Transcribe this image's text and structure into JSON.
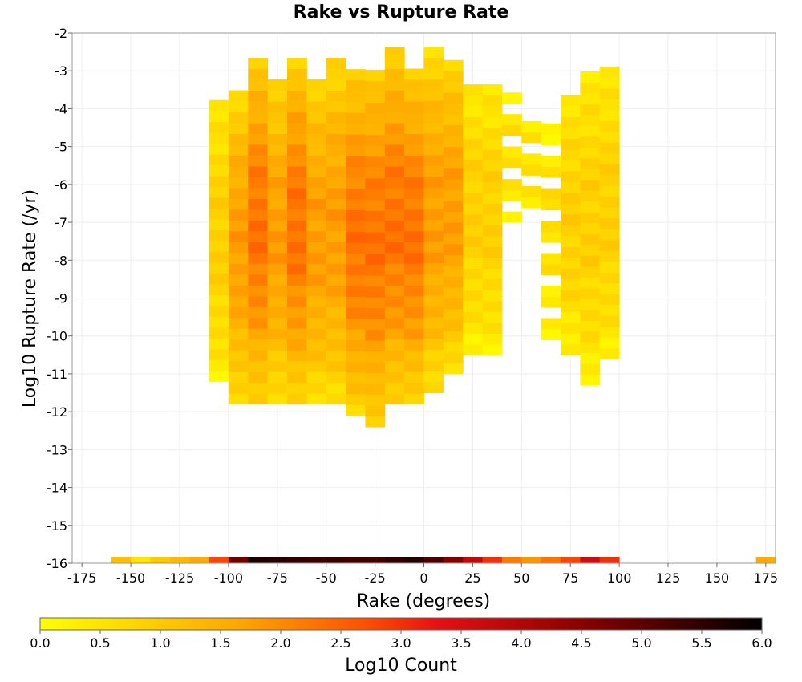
{
  "chart_data": {
    "type": "heatmap",
    "title": "Rake vs Rupture Rate",
    "xlabel": "Rake (degrees)",
    "ylabel": "Log10 Rupture Rate (/yr)",
    "xlim": [
      -180,
      180
    ],
    "ylim": [
      -16,
      -2
    ],
    "x_ticks": [
      -175,
      -150,
      -125,
      -100,
      -75,
      -50,
      -25,
      0,
      25,
      50,
      75,
      100,
      125,
      150,
      175
    ],
    "y_ticks": [
      -2,
      -3,
      -4,
      -5,
      -6,
      -7,
      -8,
      -9,
      -10,
      -11,
      -12,
      -13,
      -14,
      -15,
      -16
    ],
    "grid": true,
    "bin_width_x": 10,
    "bin_height_y": 0.2857,
    "x_bins_start": -110,
    "colorbar": {
      "label": "Log10 Count",
      "min": 0.0,
      "max": 6.0,
      "ticks": [
        "0.0",
        "0.5",
        "1.0",
        "1.5",
        "2.0",
        "2.5",
        "3.0",
        "3.5",
        "4.0",
        "4.5",
        "5.0",
        "5.5",
        "6.0"
      ],
      "colors": [
        "#ffff00",
        "#ffa500",
        "#ff5000",
        "#e81010",
        "#8b0000",
        "#000000"
      ]
    },
    "cells": [
      {
        "x": -110,
        "y_range": [
          -11.2,
          -3.8
        ],
        "value_profile": "edge"
      },
      {
        "x": -100,
        "y_range": [
          -11.8,
          -3.6
        ],
        "value_profile": "mid"
      },
      {
        "x": -90,
        "y_range": [
          -11.8,
          -2.7
        ],
        "value_profile": "high"
      },
      {
        "x": -80,
        "y_range": [
          -11.8,
          -3.2
        ],
        "value_profile": "mid"
      },
      {
        "x": -70,
        "y_range": [
          -11.8,
          -2.7
        ],
        "value_profile": "high"
      },
      {
        "x": -60,
        "y_range": [
          -11.8,
          -3.2
        ],
        "value_profile": "mid"
      },
      {
        "x": -50,
        "y_range": [
          -11.8,
          -2.7
        ],
        "value_profile": "mid"
      },
      {
        "x": -40,
        "y_range": [
          -12.1,
          -3.0
        ],
        "value_profile": "high"
      },
      {
        "x": -30,
        "y_range": [
          -12.4,
          -3.0
        ],
        "value_profile": "high"
      },
      {
        "x": -20,
        "y_range": [
          -11.8,
          -2.5
        ],
        "value_profile": "high"
      },
      {
        "x": -10,
        "y_range": [
          -11.8,
          -3.0
        ],
        "value_profile": "high"
      },
      {
        "x": 0,
        "y_range": [
          -11.5,
          -2.5
        ],
        "value_profile": "mid"
      },
      {
        "x": 10,
        "y_range": [
          -11.0,
          -2.7
        ],
        "value_profile": "mid"
      },
      {
        "x": 20,
        "y_range": [
          -10.5,
          -3.3
        ],
        "value_profile": "edge"
      },
      {
        "x": 30,
        "y_range": [
          -10.5,
          -3.3
        ],
        "value_profile": "edge"
      },
      {
        "x": 40,
        "y_range": [
          -7.0,
          -3.6
        ],
        "value_profile": "sparse"
      },
      {
        "x": 50,
        "y_range": [
          -6.9,
          -4.4
        ],
        "value_profile": "sparse"
      },
      {
        "x": 60,
        "y_range": [
          -10.1,
          -4.4
        ],
        "value_profile": "sparse"
      },
      {
        "x": 70,
        "y_range": [
          -10.5,
          -3.6
        ],
        "value_profile": "edge"
      },
      {
        "x": 80,
        "y_range": [
          -11.3,
          -3.0
        ],
        "value_profile": "edge"
      },
      {
        "x": 90,
        "y_range": [
          -10.6,
          -3.0
        ],
        "value_profile": "edge"
      }
    ],
    "bottom_row": {
      "y": -16,
      "x_values": [
        -160,
        -150,
        -140,
        -130,
        -120,
        -110,
        -100,
        -90,
        -80,
        -70,
        -60,
        -50,
        -40,
        -30,
        -20,
        -10,
        0,
        10,
        20,
        30,
        40,
        50,
        60,
        70,
        80,
        90,
        170
      ],
      "log10_counts": [
        1.2,
        0.5,
        1.0,
        1.3,
        1.6,
        2.8,
        4.8,
        5.7,
        5.6,
        5.5,
        5.4,
        5.4,
        5.3,
        5.3,
        5.5,
        5.6,
        5.2,
        4.6,
        3.8,
        3.0,
        2.2,
        1.9,
        2.3,
        2.8,
        3.6,
        3.0,
        1.6
      ]
    }
  }
}
